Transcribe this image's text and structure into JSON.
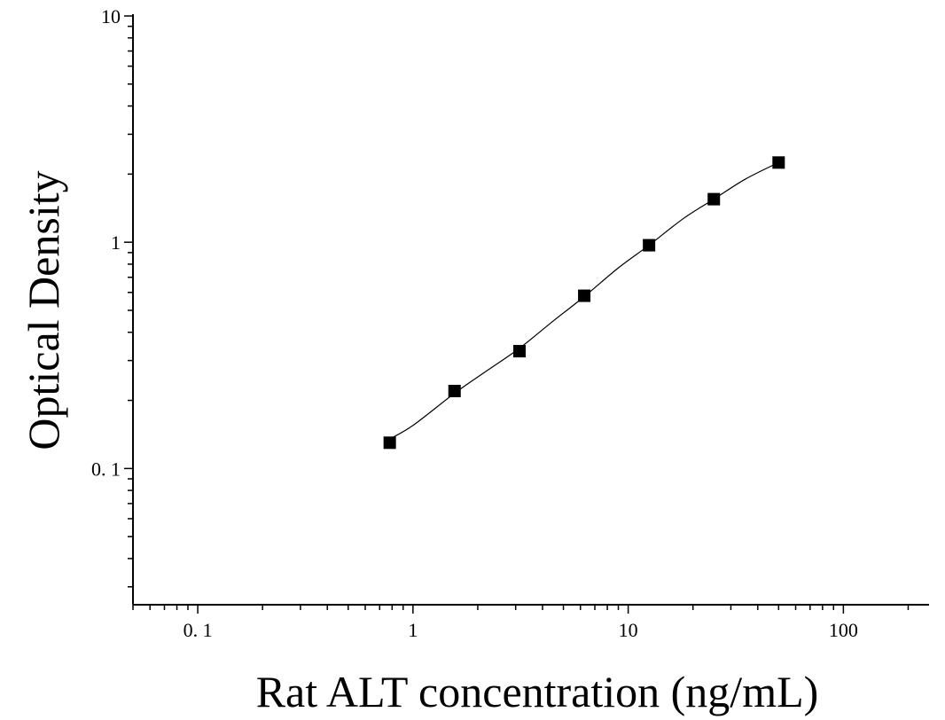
{
  "chart_data": {
    "type": "scatter",
    "title": "",
    "xlabel": "Rat ALT concentration (ng/mL)",
    "ylabel": "Optical Density",
    "x_scale": "log",
    "y_scale": "log",
    "xlim": [
      0.05,
      250
    ],
    "ylim": [
      0.025,
      10
    ],
    "x_ticks": [
      {
        "value": 0.1,
        "label": "0. 1"
      },
      {
        "value": 1,
        "label": "1"
      },
      {
        "value": 10,
        "label": "10"
      },
      {
        "value": 100,
        "label": "100"
      }
    ],
    "y_ticks": [
      {
        "value": 0.1,
        "label": "0. 1"
      },
      {
        "value": 1,
        "label": "1"
      },
      {
        "value": 10,
        "label": "10"
      }
    ],
    "grid": false,
    "legend": "none",
    "marker_color": "#000000",
    "series": [
      {
        "name": "",
        "marker": "square",
        "x": [
          0.78,
          1.56,
          3.125,
          6.25,
          12.5,
          25,
          50
        ],
        "y": [
          0.13,
          0.22,
          0.33,
          0.58,
          0.97,
          1.55,
          2.25
        ]
      }
    ],
    "fit_curve": {
      "type": "smooth",
      "color": "#000000",
      "x": [
        0.78,
        1.0,
        1.56,
        2.2,
        3.125,
        4.5,
        6.25,
        9.0,
        12.5,
        18.0,
        25,
        35,
        50
      ],
      "y": [
        0.135,
        0.155,
        0.215,
        0.27,
        0.34,
        0.45,
        0.575,
        0.77,
        0.97,
        1.27,
        1.55,
        1.9,
        2.25
      ]
    }
  }
}
